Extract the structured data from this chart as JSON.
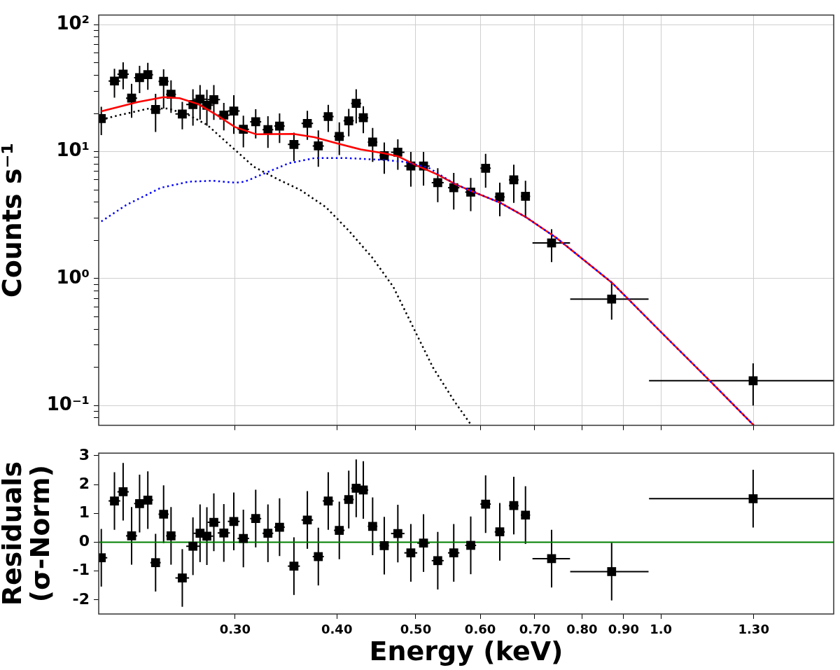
{
  "chart_data": [
    {
      "type": "scatter",
      "ylabel": "Counts s⁻¹",
      "log": "xy",
      "grid": true,
      "tick_labels": "y",
      "xlim": [
        0.204,
        1.63
      ],
      "ylim": [
        0.07,
        119
      ],
      "xticks": [
        {
          "value": 0.3,
          "label": null
        },
        {
          "value": 0.4,
          "label": null
        },
        {
          "value": 0.5,
          "label": null
        },
        {
          "value": 0.6,
          "label": null
        },
        {
          "value": 0.7,
          "label": null
        },
        {
          "value": 0.8,
          "label": null
        },
        {
          "value": 0.9,
          "label": null
        },
        {
          "value": 1,
          "label": null
        },
        {
          "value": 1.3,
          "label": null
        }
      ],
      "yticks": [
        {
          "value": 0.08,
          "label": null
        },
        {
          "value": 0.09,
          "label": null
        },
        {
          "value": 0.1,
          "label": "10⁻¹"
        },
        {
          "value": 0.2,
          "label": null
        },
        {
          "value": 0.3,
          "label": null
        },
        {
          "value": 0.4,
          "label": null
        },
        {
          "value": 0.5,
          "label": null
        },
        {
          "value": 0.6,
          "label": null
        },
        {
          "value": 0.7,
          "label": null
        },
        {
          "value": 0.8,
          "label": null
        },
        {
          "value": 0.9,
          "label": null
        },
        {
          "value": 1,
          "label": "10⁰"
        },
        {
          "value": 2,
          "label": null
        },
        {
          "value": 3,
          "label": null
        },
        {
          "value": 4,
          "label": null
        },
        {
          "value": 5,
          "label": null
        },
        {
          "value": 6,
          "label": null
        },
        {
          "value": 7,
          "label": null
        },
        {
          "value": 8,
          "label": null
        },
        {
          "value": 9,
          "label": null
        },
        {
          "value": 10,
          "label": "10¹"
        },
        {
          "value": 20,
          "label": null
        },
        {
          "value": 30,
          "label": null
        },
        {
          "value": 40,
          "label": null
        },
        {
          "value": 50,
          "label": null
        },
        {
          "value": 60,
          "label": null
        },
        {
          "value": 70,
          "label": null
        },
        {
          "value": 80,
          "label": null
        },
        {
          "value": 90,
          "label": null
        },
        {
          "value": 100,
          "label": "10²"
        }
      ],
      "x": [
        0.2055,
        0.2133,
        0.2186,
        0.2239,
        0.229,
        0.2344,
        0.2396,
        0.2451,
        0.2503,
        0.2584,
        0.2663,
        0.2717,
        0.277,
        0.2825,
        0.2906,
        0.2989,
        0.3071,
        0.318,
        0.3292,
        0.3402,
        0.3543,
        0.368,
        0.3796,
        0.3904,
        0.4028,
        0.4137,
        0.4225,
        0.4311,
        0.4426,
        0.4574,
        0.4753,
        0.4931,
        0.5111,
        0.5321,
        0.5567,
        0.5841,
        0.6092,
        0.6341,
        0.6597,
        0.6819,
        0.7341,
        0.87,
        1.298
      ],
      "series": [
        {
          "type": "scatter",
          "marker": "square",
          "color": "#000000",
          "values": [
            18.2,
            36,
            40.8,
            26.4,
            38.3,
            40.4,
            21.5,
            35.8,
            28.3,
            19.8,
            23.5,
            25.9,
            23.2,
            25.7,
            19.4,
            20.9,
            15,
            17.2,
            14.9,
            15.9,
            11.4,
            16.7,
            11.1,
            18.9,
            13.2,
            17.5,
            24,
            18.5,
            11.9,
            9.3,
            9.9,
            7.7,
            7.7,
            5.7,
            5.2,
            4.8,
            7.4,
            4.4,
            6,
            4.45,
            1.91,
            0.69,
            0.157
          ],
          "errors": [
            [
              13.5,
              22.6
            ],
            [
              26.6,
              45
            ],
            [
              31,
              50.5
            ],
            [
              18.5,
              34.2
            ],
            [
              28.9,
              47.5
            ],
            [
              30.7,
              50.1
            ],
            [
              14.3,
              28.6
            ],
            [
              21.9,
              44.6
            ],
            [
              20.2,
              36.5
            ],
            [
              15,
              24.7
            ],
            [
              16,
              31
            ],
            [
              17.9,
              33.5
            ],
            [
              16,
              30.7
            ],
            [
              17.8,
              33.5
            ],
            [
              14.7,
              24.2
            ],
            [
              13.8,
              27.8
            ],
            [
              10.8,
              19.2
            ],
            [
              12.7,
              21.6
            ],
            [
              10.7,
              19
            ],
            [
              11.7,
              20
            ],
            [
              8.4,
              14.1
            ],
            [
              12.4,
              21
            ],
            [
              7.6,
              14.7
            ],
            [
              14.3,
              23.4
            ],
            [
              9.4,
              17
            ],
            [
              13.2,
              21.7
            ],
            [
              16.7,
              31
            ],
            [
              14,
              22.8
            ],
            [
              8.3,
              15.4
            ],
            [
              6.7,
              11.8
            ],
            [
              7.2,
              12.5
            ],
            [
              5.3,
              9.95
            ],
            [
              5.4,
              9.95
            ],
            [
              4,
              7.4
            ],
            [
              3.5,
              6.8
            ],
            [
              3.4,
              6.2
            ],
            [
              5.2,
              9.6
            ],
            [
              3.1,
              5.7
            ],
            [
              3.95,
              7.9
            ],
            [
              3.1,
              5.9
            ],
            [
              1.35,
              2.45
            ],
            [
              0.475,
              0.92
            ],
            [
              0.1,
              0.215
            ]
          ],
          "xerrors": [
            0.0035,
            0.0035,
            0.0035,
            0.0035,
            0.0035,
            0.0035,
            0.0035,
            0.0035,
            0.0035,
            0.005,
            0.005,
            0.005,
            0.005,
            0.005,
            0.005,
            0.005,
            0.005,
            0.005,
            0.005,
            0.005,
            0.006,
            0.006,
            0.006,
            0.006,
            0.006,
            0.006,
            0.006,
            0.006,
            0.006,
            0.006,
            0.009,
            0.009,
            0.009,
            0.009,
            0.009,
            0.009,
            0.009,
            0.009,
            0.009,
            0.009,
            [
              0.6955,
              0.7734
            ],
            [
              0.7738,
              0.9657
            ],
            [
              0.967,
              1.63
            ]
          ]
        },
        {
          "type": "line",
          "color": "#ff0000",
          "line_style": "solid",
          "x": [
            0.2055,
            0.2278,
            0.2451,
            0.2564,
            0.2703,
            0.2849,
            0.3001,
            0.3186,
            0.3538,
            0.3754,
            0.4009,
            0.4281,
            0.4574,
            0.4753,
            0.4987,
            0.5318,
            0.5605,
            0.5943,
            0.635,
            0.6826,
            0.7437,
            0.8705,
            1.0,
            1.147,
            1.3
          ],
          "values": [
            20.8,
            24.6,
            26.9,
            26.4,
            23.7,
            19.4,
            15.6,
            13.7,
            13.8,
            13,
            11.6,
            10.4,
            9.7,
            9.2,
            7.9,
            6.6,
            5.5,
            4.7,
            3.96,
            3.05,
            2.1,
            0.93,
            0.38,
            0.158,
            0.07
          ]
        },
        {
          "type": "line",
          "color": "#000000",
          "line_style": "dotted",
          "x": [
            0.2055,
            0.2162,
            0.2354,
            0.2481,
            0.2633,
            0.2774,
            0.2962,
            0.3164,
            0.3379,
            0.3607,
            0.3879,
            0.4144,
            0.4423,
            0.4693,
            0.5248,
            0.5567,
            0.585
          ],
          "values": [
            17.9,
            19.4,
            21.9,
            21.9,
            19.4,
            16.2,
            11.1,
            7.6,
            6.1,
            5,
            3.65,
            2.36,
            1.46,
            0.86,
            0.2,
            0.11,
            0.07
          ]
        },
        {
          "type": "line",
          "color": "#0000ff",
          "line_style": "dotted",
          "x": [
            0.2055,
            0.2205,
            0.2433,
            0.2633,
            0.2811,
            0.3001,
            0.3082,
            0.327,
            0.3492,
            0.3754,
            0.4116,
            0.4574,
            0.4851,
            0.518,
            0.5605,
            0.5943,
            0.635,
            0.6826,
            0.7437,
            0.8705,
            1.0,
            1.147,
            1.3
          ],
          "values": [
            2.82,
            3.8,
            5.2,
            5.8,
            5.9,
            5.7,
            5.8,
            6.8,
            8.1,
            8.9,
            8.9,
            8.6,
            8.3,
            7.5,
            5.5,
            4.7,
            3.96,
            3.05,
            2.1,
            0.93,
            0.38,
            0.158,
            0.07
          ]
        }
      ]
    },
    {
      "type": "scatter",
      "xlabel": "Energy (keV)",
      "ylabel": "Residuals\n(σ-Norm)",
      "log": "x",
      "xlim": [
        0.204,
        1.63
      ],
      "ylim": [
        -2.49,
        3.09
      ],
      "xticks": [
        {
          "value": 0.3,
          "label": "0.30"
        },
        {
          "value": 0.4,
          "label": "0.40"
        },
        {
          "value": 0.5,
          "label": "0.50"
        },
        {
          "value": 0.6,
          "label": "0.60"
        },
        {
          "value": 0.7,
          "label": "0.70"
        },
        {
          "value": 0.8,
          "label": "0.80"
        },
        {
          "value": 0.9,
          "label": "0.90"
        },
        {
          "value": 1,
          "label": "1.0"
        },
        {
          "value": 1.3,
          "label": "1.30"
        }
      ],
      "yticks": [
        -2,
        -1,
        0,
        1,
        2,
        3
      ],
      "ref_lines": [
        {
          "axis": "y",
          "value": 0,
          "color": "#008000"
        }
      ],
      "x": [
        0.2055,
        0.2133,
        0.2186,
        0.2239,
        0.229,
        0.2344,
        0.2396,
        0.2451,
        0.2503,
        0.2584,
        0.2663,
        0.2717,
        0.277,
        0.2825,
        0.2906,
        0.2989,
        0.3071,
        0.318,
        0.3292,
        0.3402,
        0.3543,
        0.368,
        0.3796,
        0.3904,
        0.4028,
        0.4137,
        0.4225,
        0.4311,
        0.4426,
        0.4574,
        0.4753,
        0.4931,
        0.5111,
        0.5321,
        0.5567,
        0.5841,
        0.6092,
        0.6341,
        0.6597,
        0.6819,
        0.7341,
        0.87,
        1.298
      ],
      "series": [
        {
          "type": "scatter",
          "marker": "square",
          "color": "#000000",
          "values": [
            -0.54,
            1.43,
            1.75,
            0.22,
            1.34,
            1.46,
            -0.71,
            0.97,
            0.22,
            -1.24,
            -0.14,
            0.31,
            0.21,
            0.69,
            0.32,
            0.72,
            0.13,
            0.82,
            0.31,
            0.52,
            -0.83,
            0.77,
            -0.5,
            1.43,
            0.41,
            1.48,
            1.87,
            1.81,
            0.55,
            -0.12,
            0.3,
            -0.37,
            -0.03,
            -0.64,
            -0.37,
            -0.11,
            1.32,
            0.36,
            1.27,
            0.94,
            -0.57,
            -1.02,
            1.51
          ],
          "errors": [
            1,
            1,
            1,
            1,
            1,
            1,
            1,
            1,
            1,
            1,
            1,
            1,
            1,
            1,
            1,
            1,
            1,
            1,
            1,
            1,
            1,
            1,
            1,
            1,
            1,
            1,
            1,
            1,
            1,
            1,
            1,
            1,
            1,
            1,
            1,
            1,
            1,
            1,
            1,
            1,
            1,
            1,
            1
          ],
          "xerrors": [
            0.0035,
            0.0035,
            0.0035,
            0.0035,
            0.0035,
            0.0035,
            0.0035,
            0.0035,
            0.0035,
            0.005,
            0.005,
            0.005,
            0.005,
            0.005,
            0.005,
            0.005,
            0.005,
            0.005,
            0.005,
            0.005,
            0.006,
            0.006,
            0.006,
            0.006,
            0.006,
            0.006,
            0.006,
            0.006,
            0.006,
            0.006,
            0.009,
            0.009,
            0.009,
            0.009,
            0.009,
            0.009,
            0.009,
            0.009,
            0.009,
            0.009,
            [
              0.6955,
              0.7734
            ],
            [
              0.7738,
              0.9657
            ],
            [
              0.967,
              1.63
            ]
          ]
        }
      ]
    }
  ]
}
